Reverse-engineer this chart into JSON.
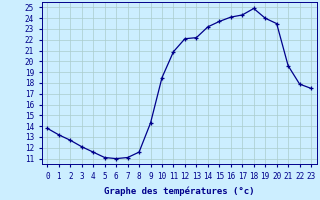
{
  "hours": [
    0,
    1,
    2,
    3,
    4,
    5,
    6,
    7,
    8,
    9,
    10,
    11,
    12,
    13,
    14,
    15,
    16,
    17,
    18,
    19,
    20,
    21,
    22,
    23
  ],
  "temps": [
    13.8,
    13.2,
    12.7,
    12.1,
    11.6,
    11.1,
    11.0,
    11.1,
    11.6,
    14.3,
    18.5,
    20.9,
    22.1,
    22.2,
    23.2,
    23.7,
    24.1,
    24.3,
    24.9,
    24.0,
    23.5,
    19.6,
    17.9,
    17.5
  ],
  "line_color": "#00008B",
  "marker": "+",
  "bg_color": "#cceeff",
  "grid_color": "#aacccc",
  "xlabel": "Graphe des températures (°c)",
  "ylabel_ticks": [
    11,
    12,
    13,
    14,
    15,
    16,
    17,
    18,
    19,
    20,
    21,
    22,
    23,
    24,
    25
  ],
  "ylim": [
    10.5,
    25.5
  ],
  "xlim": [
    -0.5,
    23.5
  ],
  "xlabel_color": "#00008B",
  "tick_color": "#00008B",
  "label_fontsize": 6.5,
  "tick_fontsize": 5.5
}
